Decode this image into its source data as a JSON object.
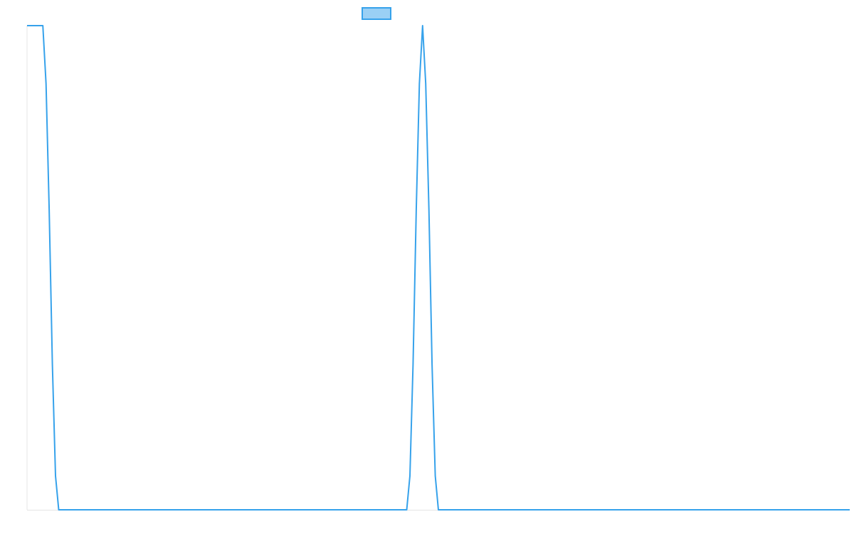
{
  "chart_data": {
    "type": "line",
    "title": "",
    "xlabel": "",
    "ylabel": "",
    "legend": {
      "placement": "top-center",
      "show_label": false
    },
    "grid": false,
    "x_range": [
      0,
      52
    ],
    "y_range": [
      0,
      1
    ],
    "series": [
      {
        "color": "#36A2EB",
        "fill": "#9AD0F5",
        "x": [
          0,
          1,
          1.2,
          1.4,
          1.6,
          1.8,
          2,
          24,
          24.2,
          24.4,
          24.6,
          24.8,
          25,
          25.2,
          25.4,
          25.6,
          25.8,
          26,
          52
        ],
        "y": [
          1,
          1,
          0.88,
          0.62,
          0.3,
          0.07,
          0,
          0,
          0.07,
          0.3,
          0.62,
          0.88,
          1,
          0.88,
          0.62,
          0.3,
          0.07,
          0,
          0
        ]
      }
    ]
  }
}
